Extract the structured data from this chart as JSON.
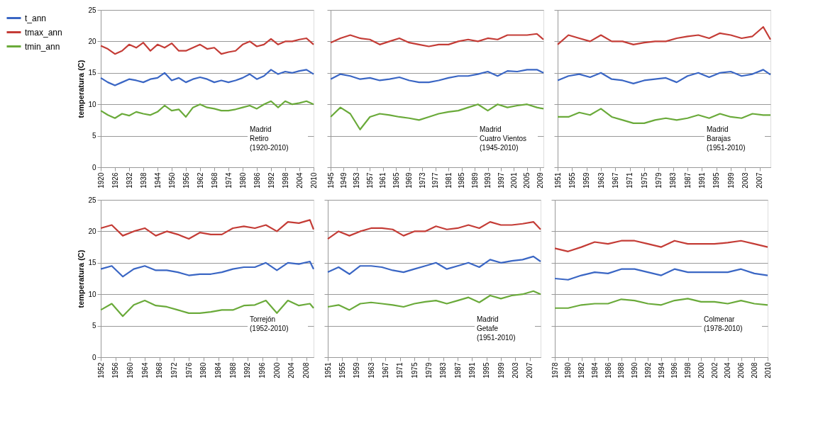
{
  "chart_data": [
    {
      "type": "line",
      "ylabel": "temperatura (C)",
      "legend": "left",
      "grid": "y",
      "ylim": [
        0,
        25
      ],
      "yticks": [
        0,
        5,
        10,
        15,
        20,
        25
      ],
      "xlim": [
        1920,
        2010
      ],
      "xticks": [
        1920,
        1926,
        1932,
        1938,
        1944,
        1950,
        1956,
        1962,
        1968,
        1974,
        1980,
        1986,
        1992,
        1998,
        2004,
        2010
      ],
      "annotations": [
        "Madrid\nRetiro\n(1920-2010)"
      ],
      "x": [
        1920,
        1923,
        1926,
        1929,
        1932,
        1935,
        1938,
        1941,
        1944,
        1947,
        1950,
        1953,
        1956,
        1959,
        1962,
        1965,
        1968,
        1971,
        1974,
        1977,
        1980,
        1983,
        1986,
        1989,
        1992,
        1995,
        1998,
        2001,
        2004,
        2007,
        2010
      ],
      "series": [
        {
          "name": "t_ann",
          "color": "#3a66c4",
          "values": [
            14.2,
            13.5,
            13.0,
            13.5,
            14.0,
            13.8,
            13.5,
            14.0,
            14.2,
            15.0,
            13.8,
            14.2,
            13.5,
            14.0,
            14.3,
            14.0,
            13.5,
            13.8,
            13.5,
            13.8,
            14.2,
            14.8,
            14.0,
            14.5,
            15.5,
            14.8,
            15.2,
            15.0,
            15.3,
            15.5,
            14.8
          ]
        },
        {
          "name": "tmax_ann",
          "color": "#c43c36",
          "values": [
            19.3,
            18.8,
            18.0,
            18.5,
            19.5,
            19.0,
            19.8,
            18.5,
            19.5,
            19.0,
            19.7,
            18.5,
            18.5,
            19.0,
            19.5,
            18.8,
            19.0,
            18.0,
            18.3,
            18.5,
            19.5,
            20.0,
            19.2,
            19.5,
            20.4,
            19.5,
            20.0,
            20.0,
            20.3,
            20.5,
            19.5
          ]
        },
        {
          "name": "tmin_ann",
          "color": "#6aaa3a",
          "values": [
            9.0,
            8.3,
            7.8,
            8.5,
            8.2,
            8.8,
            8.5,
            8.3,
            8.8,
            9.8,
            9.0,
            9.2,
            8.0,
            9.5,
            10.0,
            9.5,
            9.3,
            9.0,
            9.0,
            9.2,
            9.5,
            9.8,
            9.3,
            10.0,
            10.5,
            9.5,
            10.5,
            10.0,
            10.2,
            10.5,
            10.0
          ]
        }
      ]
    },
    {
      "type": "line",
      "grid": "y",
      "tick_labels": "x",
      "ylim": [
        0,
        25
      ],
      "yticks": [
        0,
        5,
        10,
        15,
        20,
        25
      ],
      "xlim": [
        1945,
        2010
      ],
      "xticks": [
        1945,
        1949,
        1953,
        1957,
        1961,
        1965,
        1969,
        1973,
        1977,
        1981,
        1985,
        1989,
        1993,
        1997,
        2001,
        2005,
        2009
      ],
      "annotations": [
        "Madrid\nCuatro Vientos\n(1945-2010)"
      ],
      "x": [
        1945,
        1948,
        1951,
        1954,
        1957,
        1960,
        1963,
        1966,
        1969,
        1972,
        1975,
        1978,
        1981,
        1984,
        1987,
        1990,
        1993,
        1996,
        1999,
        2002,
        2005,
        2008,
        2010
      ],
      "series": [
        {
          "name": "t_ann",
          "color": "#3a66c4",
          "values": [
            14.0,
            14.8,
            14.5,
            14.0,
            14.2,
            13.8,
            14.0,
            14.3,
            13.8,
            13.5,
            13.5,
            13.8,
            14.2,
            14.5,
            14.5,
            14.8,
            15.2,
            14.5,
            15.3,
            15.2,
            15.5,
            15.5,
            15.0
          ]
        },
        {
          "name": "tmax_ann",
          "color": "#c43c36",
          "values": [
            19.8,
            20.5,
            21.0,
            20.5,
            20.3,
            19.5,
            20.0,
            20.5,
            19.8,
            19.5,
            19.2,
            19.5,
            19.5,
            20.0,
            20.3,
            20.0,
            20.5,
            20.3,
            21.0,
            21.0,
            21.0,
            21.2,
            20.3
          ]
        },
        {
          "name": "tmin_ann",
          "color": "#6aaa3a",
          "values": [
            8.0,
            9.5,
            8.5,
            6.0,
            8.0,
            8.5,
            8.3,
            8.0,
            7.8,
            7.5,
            8.0,
            8.5,
            8.8,
            9.0,
            9.5,
            10.0,
            9.0,
            10.0,
            9.5,
            9.8,
            10.0,
            9.5,
            9.3
          ]
        }
      ]
    },
    {
      "type": "line",
      "grid": "y",
      "tick_labels": "x",
      "ylim": [
        0,
        25
      ],
      "yticks": [
        0,
        5,
        10,
        15,
        20,
        25
      ],
      "xlim": [
        1951,
        2010
      ],
      "xticks": [
        1951,
        1955,
        1959,
        1963,
        1967,
        1971,
        1975,
        1979,
        1983,
        1987,
        1991,
        1995,
        1999,
        2003,
        2007
      ],
      "annotations": [
        "Madrid\nBarajas\n(1951-2010)"
      ],
      "x": [
        1951,
        1954,
        1957,
        1960,
        1963,
        1966,
        1969,
        1972,
        1975,
        1978,
        1981,
        1984,
        1987,
        1990,
        1993,
        1996,
        1999,
        2002,
        2005,
        2008,
        2010
      ],
      "series": [
        {
          "name": "t_ann",
          "color": "#3a66c4",
          "values": [
            13.8,
            14.5,
            14.8,
            14.3,
            15.0,
            14.0,
            13.8,
            13.3,
            13.8,
            14.0,
            14.2,
            13.5,
            14.5,
            15.0,
            14.3,
            15.0,
            15.2,
            14.5,
            14.8,
            15.5,
            14.7
          ]
        },
        {
          "name": "tmax_ann",
          "color": "#c43c36",
          "values": [
            19.5,
            21.0,
            20.5,
            20.0,
            21.0,
            20.0,
            20.0,
            19.5,
            19.8,
            20.0,
            20.0,
            20.5,
            20.8,
            21.0,
            20.5,
            21.3,
            21.0,
            20.5,
            20.8,
            22.3,
            20.3
          ]
        },
        {
          "name": "tmin_ann",
          "color": "#6aaa3a",
          "values": [
            8.0,
            8.0,
            8.7,
            8.3,
            9.3,
            8.0,
            7.5,
            7.0,
            7.0,
            7.5,
            7.8,
            7.5,
            7.8,
            8.3,
            7.8,
            8.5,
            8.0,
            7.8,
            8.5,
            8.3,
            8.3
          ]
        }
      ]
    },
    {
      "type": "line",
      "ylabel": "temperatura (C)",
      "grid": "y",
      "ylim": [
        0,
        25
      ],
      "yticks": [
        0,
        5,
        10,
        15,
        20,
        25
      ],
      "xlim": [
        1952,
        2010
      ],
      "xticks": [
        1952,
        1956,
        1960,
        1964,
        1968,
        1972,
        1976,
        1980,
        1984,
        1988,
        1992,
        1996,
        2000,
        2004,
        2008
      ],
      "annotations": [
        "Torrejón\n(1952-2010)"
      ],
      "x": [
        1952,
        1955,
        1958,
        1961,
        1964,
        1967,
        1970,
        1973,
        1976,
        1979,
        1982,
        1985,
        1988,
        1991,
        1994,
        1997,
        2000,
        2003,
        2006,
        2009,
        2010
      ],
      "series": [
        {
          "name": "t_ann",
          "color": "#3a66c4",
          "values": [
            14.0,
            14.5,
            12.8,
            14.0,
            14.5,
            13.8,
            13.8,
            13.5,
            13.0,
            13.2,
            13.2,
            13.5,
            14.0,
            14.3,
            14.3,
            15.0,
            13.8,
            15.0,
            14.8,
            15.2,
            14.0
          ]
        },
        {
          "name": "tmax_ann",
          "color": "#c43c36",
          "values": [
            20.5,
            21.0,
            19.3,
            20.0,
            20.5,
            19.3,
            20.0,
            19.5,
            18.8,
            19.8,
            19.5,
            19.5,
            20.5,
            20.8,
            20.5,
            21.0,
            20.0,
            21.5,
            21.3,
            21.8,
            20.3
          ]
        },
        {
          "name": "tmin_ann",
          "color": "#6aaa3a",
          "values": [
            7.5,
            8.5,
            6.5,
            8.3,
            9.0,
            8.2,
            8.0,
            7.5,
            7.0,
            7.0,
            7.2,
            7.5,
            7.5,
            8.2,
            8.3,
            9.0,
            7.0,
            9.0,
            8.2,
            8.5,
            7.8
          ]
        }
      ]
    },
    {
      "type": "line",
      "grid": "y",
      "tick_labels": "x",
      "ylim": [
        0,
        25
      ],
      "yticks": [
        0,
        5,
        10,
        15,
        20,
        25
      ],
      "xlim": [
        1951,
        2010
      ],
      "xticks": [
        1951,
        1955,
        1959,
        1963,
        1967,
        1971,
        1975,
        1979,
        1983,
        1987,
        1991,
        1995,
        1999,
        2003,
        2007
      ],
      "annotations": [
        "Madrid\nGetafe\n(1951-2010)"
      ],
      "x": [
        1951,
        1954,
        1957,
        1960,
        1963,
        1966,
        1969,
        1972,
        1975,
        1978,
        1981,
        1984,
        1987,
        1990,
        1993,
        1996,
        1999,
        2002,
        2005,
        2008,
        2010
      ],
      "series": [
        {
          "name": "t_ann",
          "color": "#3a66c4",
          "values": [
            13.5,
            14.3,
            13.2,
            14.5,
            14.5,
            14.3,
            13.8,
            13.5,
            14.0,
            14.5,
            15.0,
            14.0,
            14.5,
            15.0,
            14.3,
            15.5,
            15.0,
            15.3,
            15.5,
            16.0,
            15.2
          ]
        },
        {
          "name": "tmax_ann",
          "color": "#c43c36",
          "values": [
            18.8,
            20.0,
            19.3,
            20.0,
            20.5,
            20.5,
            20.3,
            19.3,
            20.0,
            20.0,
            20.8,
            20.3,
            20.5,
            21.0,
            20.5,
            21.5,
            21.0,
            21.0,
            21.2,
            21.5,
            20.3
          ]
        },
        {
          "name": "tmin_ann",
          "color": "#6aaa3a",
          "values": [
            8.0,
            8.3,
            7.5,
            8.5,
            8.7,
            8.5,
            8.3,
            8.0,
            8.5,
            8.8,
            9.0,
            8.5,
            9.0,
            9.5,
            8.7,
            9.8,
            9.3,
            9.8,
            10.0,
            10.5,
            10.0
          ]
        }
      ]
    },
    {
      "type": "line",
      "grid": "y",
      "tick_labels": "x",
      "ylim": [
        0,
        25
      ],
      "yticks": [
        0,
        5,
        10,
        15,
        20,
        25
      ],
      "xlim": [
        1978,
        2010
      ],
      "xticks": [
        1978,
        1980,
        1982,
        1984,
        1986,
        1988,
        1990,
        1992,
        1994,
        1996,
        1998,
        2000,
        2002,
        2004,
        2006,
        2008,
        2010
      ],
      "annotations": [
        "Colmenar\n(1978-2010)"
      ],
      "x": [
        1978,
        1980,
        1982,
        1984,
        1986,
        1988,
        1990,
        1992,
        1994,
        1996,
        1998,
        2000,
        2002,
        2004,
        2006,
        2008,
        2010
      ],
      "series": [
        {
          "name": "t_ann",
          "color": "#3a66c4",
          "values": [
            12.5,
            12.3,
            13.0,
            13.5,
            13.3,
            14.0,
            14.0,
            13.5,
            13.0,
            14.0,
            13.5,
            13.5,
            13.5,
            13.5,
            14.0,
            13.3,
            13.0
          ]
        },
        {
          "name": "tmax_ann",
          "color": "#c43c36",
          "values": [
            17.3,
            16.8,
            17.5,
            18.3,
            18.0,
            18.5,
            18.5,
            18.0,
            17.5,
            18.5,
            18.0,
            18.0,
            18.0,
            18.2,
            18.5,
            18.0,
            17.5
          ]
        },
        {
          "name": "tmin_ann",
          "color": "#6aaa3a",
          "values": [
            7.8,
            7.8,
            8.3,
            8.5,
            8.5,
            9.2,
            9.0,
            8.5,
            8.3,
            9.0,
            9.3,
            8.8,
            8.8,
            8.5,
            9.0,
            8.5,
            8.3
          ]
        }
      ]
    }
  ]
}
